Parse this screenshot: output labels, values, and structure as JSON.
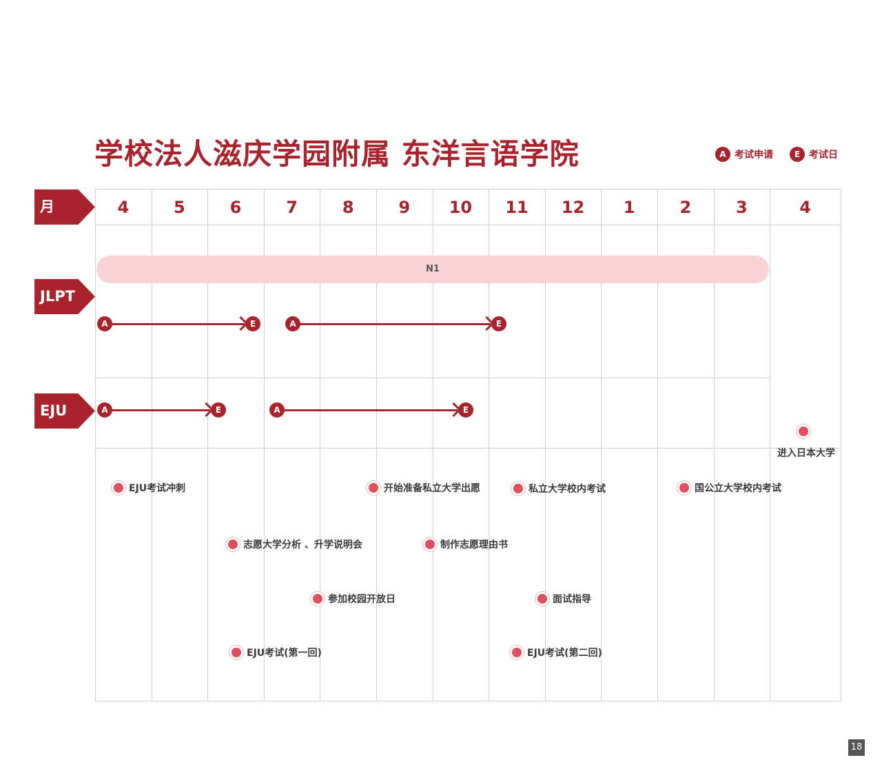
{
  "title": "学校法人滋庆学园附属 东洋言语学院",
  "legend": {
    "a_badge": "A",
    "a_label": "考试申请",
    "e_badge": "E",
    "e_label": "考试日"
  },
  "row_labels": {
    "month": "月",
    "jlpt": "JLPT",
    "eju": "EJU"
  },
  "months": [
    "4",
    "5",
    "6",
    "7",
    "8",
    "9",
    "10",
    "11",
    "12",
    "1",
    "2",
    "3",
    "4"
  ],
  "jlpt": {
    "bar_label": "N1",
    "arrows": [
      {
        "from": "A",
        "to": "E"
      },
      {
        "from": "A",
        "to": "E"
      }
    ]
  },
  "eju": {
    "arrows": [
      {
        "from": "A",
        "to": "E"
      },
      {
        "from": "A",
        "to": "E"
      }
    ]
  },
  "events": [
    "EJU考试冲刺",
    "开始准备私立大学出愿",
    "私立大学校内考试",
    "国公立大学校内考试",
    "志愿大学分析 、升学说明会",
    "制作志愿理由书",
    "参加校园开放日",
    "面试指导",
    "EJU考试(第一回)",
    "EJU考试(第二回)",
    "进入日本大学"
  ],
  "page_number": "18",
  "colors": {
    "brand": "#a8232b",
    "bar": "#f9d3d6",
    "dot": "#e0505c"
  }
}
